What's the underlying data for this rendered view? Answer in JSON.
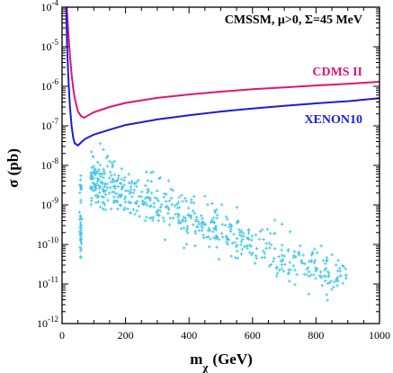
{
  "chart_data": {
    "type": "scatter",
    "title": "",
    "annotation": "CMSSM, μ>0, Σ=45 MeV",
    "xlabel": {
      "main": "m",
      "sub": "χ",
      "unit": "(GeV)"
    },
    "ylabel": "σ (pb)",
    "xlim": [
      0,
      1000
    ],
    "ylim": [
      1e-12,
      0.0001
    ],
    "yscale": "log",
    "xticks": [
      0,
      200,
      400,
      600,
      800,
      1000
    ],
    "ytick_exponents": [
      -12,
      -11,
      -10,
      -9,
      -8,
      -7,
      -6,
      -5,
      -4
    ],
    "grid": false,
    "colors": {
      "cdms": "#e0166f",
      "xenon": "#1c1cdc",
      "points": "#3ec3e6",
      "axis": "#000000"
    },
    "series": [
      {
        "name": "CDMS II",
        "kind": "line",
        "x": [
          15,
          20,
          25,
          30,
          35,
          40,
          50,
          60,
          70,
          80,
          100,
          150,
          200,
          300,
          400,
          500,
          600,
          700,
          800,
          900,
          1000
        ],
        "y": [
          0.0001,
          2e-05,
          6e-06,
          2e-06,
          9e-07,
          5e-07,
          2.3e-07,
          1.75e-07,
          1.6e-07,
          1.8e-07,
          2.2e-07,
          3e-07,
          3.8e-07,
          5.1e-07,
          6.2e-07,
          7.3e-07,
          8.4e-07,
          9.4e-07,
          1.05e-06,
          1.15e-06,
          1.3e-06
        ]
      },
      {
        "name": "XENON10",
        "kind": "line",
        "x": [
          13,
          16,
          20,
          25,
          30,
          35,
          40,
          50,
          60,
          70,
          80,
          100,
          150,
          200,
          300,
          400,
          500,
          600,
          700,
          800,
          900,
          1000
        ],
        "y": [
          0.0001,
          1e-05,
          1.5e-06,
          3e-07,
          1e-07,
          5e-08,
          3.6e-08,
          3.2e-08,
          3.8e-08,
          4.5e-08,
          5e-08,
          6e-08,
          8e-08,
          1.05e-07,
          1.45e-07,
          1.85e-07,
          2.3e-07,
          2.75e-07,
          3.2e-07,
          3.7e-07,
          4.2e-07,
          5e-07
        ]
      }
    ]
  }
}
